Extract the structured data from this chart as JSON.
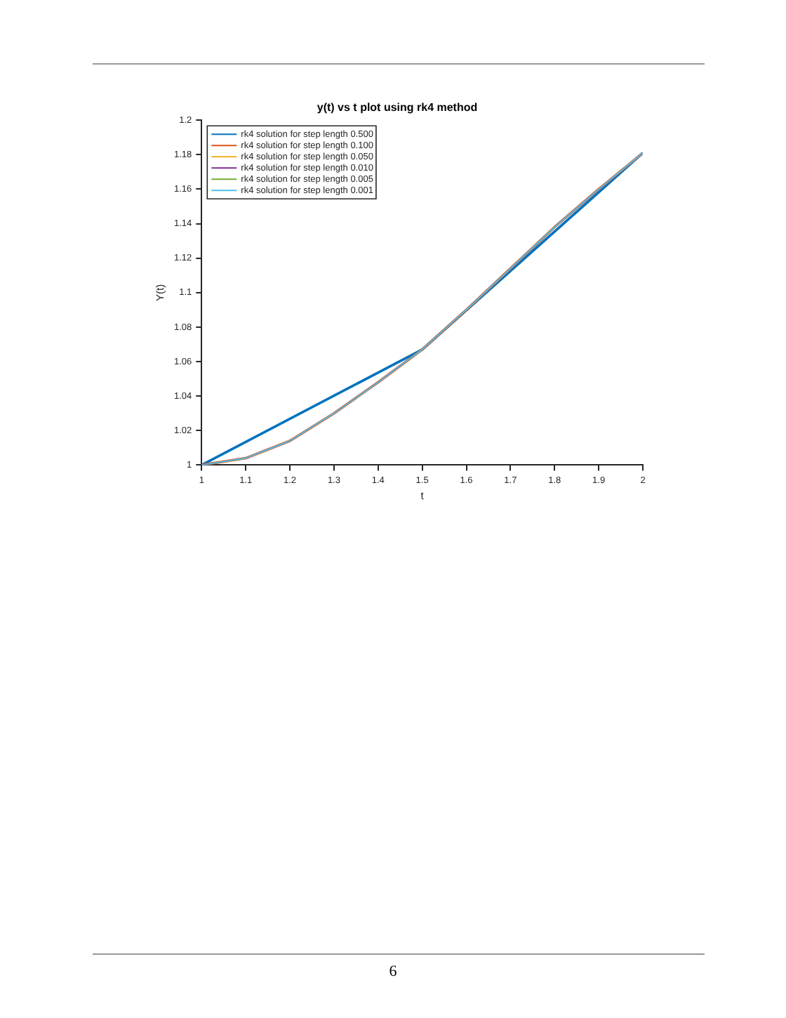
{
  "chart_data": {
    "type": "line",
    "title": "y(t) vs t plot using rk4 method",
    "xlabel": "t",
    "ylabel": "Y(t)",
    "xlim": [
      1,
      2
    ],
    "xticks": [
      1,
      1.1,
      1.2,
      1.3,
      1.4,
      1.5,
      1.6,
      1.7,
      1.8,
      1.9,
      2
    ],
    "ylim": [
      1,
      1.2
    ],
    "yticks": [
      1,
      1.02,
      1.04,
      1.06,
      1.08,
      1.1,
      1.12,
      1.14,
      1.16,
      1.18,
      1.2
    ],
    "grid": false,
    "legend": "top left",
    "marker": "none",
    "line_style": "solid",
    "annotations": [
      "6"
    ],
    "series": [
      {
        "name": "rk4 solution for step length 0.500",
        "color": "#0072bd",
        "x": [
          1,
          1.5,
          2
        ],
        "values": [
          1,
          1.067,
          1.181
        ]
      },
      {
        "name": "rk4 solution for step length 0.100",
        "color": "#d95319",
        "x": [
          1,
          1.1,
          1.2,
          1.3,
          1.4,
          1.5,
          1.6,
          1.7,
          1.8,
          1.9,
          2
        ],
        "values": [
          1,
          1.004,
          1.014,
          1.03,
          1.048,
          1.067,
          1.09,
          1.114,
          1.138,
          1.16,
          1.181
        ]
      },
      {
        "name": "rk4 solution for step length 0.050",
        "color": "#edb120"
      },
      {
        "name": "rk4 solution for step length 0.010",
        "color": "#7e2f8e"
      },
      {
        "name": "rk4 solution for step length 0.005",
        "color": "#77ac30"
      },
      {
        "name": "rk4 solution for step length 0.001",
        "color": "#4dbeee",
        "x": [
          1,
          1.1,
          1.2,
          1.3,
          1.4,
          1.5,
          1.6,
          1.7,
          1.8,
          1.9,
          2
        ],
        "values": [
          1,
          1.004,
          1.014,
          1.03,
          1.048,
          1.067,
          1.09,
          1.114,
          1.138,
          1.16,
          1.181
        ]
      }
    ]
  }
}
